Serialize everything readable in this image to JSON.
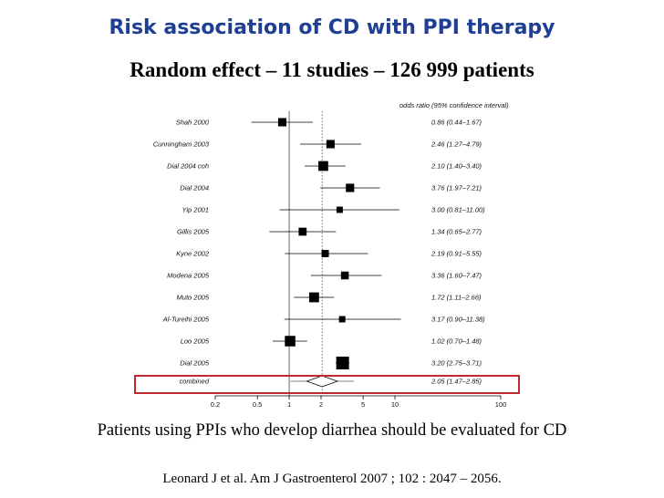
{
  "slide": {
    "title": "Risk association of CD with PPI therapy",
    "subtitle": "Random effect – 11 studies – 126 999 patients",
    "caption": "Patients using PPIs who develop diarrhea should be evaluated for CD",
    "citation": "Leonard J et al. Am J Gastroenterol 2007 ; 102 : 2047 – 2056."
  },
  "colors": {
    "title": "#1f3f94",
    "highlight": "#c0282d"
  },
  "chart_data": {
    "type": "forest",
    "column_header": "odds ratio (95% confidence interval)",
    "x_scale": "log",
    "x_ticks": [
      0.2,
      0.5,
      1,
      2,
      5,
      10,
      100
    ],
    "x_tick_labels": [
      "0.2",
      "0.5",
      "1",
      "2",
      "5",
      "10",
      "100"
    ],
    "xlim": [
      0.2,
      100
    ],
    "reference_line": 1,
    "pooled_line": 2.05,
    "studies": [
      {
        "name": "Shah 2000",
        "or": 0.86,
        "lo": 0.44,
        "hi": 1.67,
        "label": "0.86 (0.44–1.67)"
      },
      {
        "name": "Cunningham 2003",
        "or": 2.46,
        "lo": 1.27,
        "hi": 4.79,
        "label": "2.46 (1.27–4.79)"
      },
      {
        "name": "Dial 2004 coh",
        "or": 2.1,
        "lo": 1.4,
        "hi": 3.4,
        "label": "2.10 (1.40–3.40)"
      },
      {
        "name": "Dial 2004",
        "or": 3.76,
        "lo": 1.97,
        "hi": 7.21,
        "label": "3.76 (1.97–7.21)"
      },
      {
        "name": "Yip 2001",
        "or": 3.0,
        "lo": 0.81,
        "hi": 11.0,
        "label": "3.00 (0.81–11.00)"
      },
      {
        "name": "Gillis 2005",
        "or": 1.34,
        "lo": 0.65,
        "hi": 2.77,
        "label": "1.34 (0.65–2.77)"
      },
      {
        "name": "Kyne 2002",
        "or": 2.19,
        "lo": 0.91,
        "hi": 5.55,
        "label": "2.19 (0.91–5.55)"
      },
      {
        "name": "Modena 2005",
        "or": 3.36,
        "lo": 1.6,
        "hi": 7.47,
        "label": "3.36 (1.60–7.47)"
      },
      {
        "name": "Muto 2005",
        "or": 1.72,
        "lo": 1.11,
        "hi": 2.66,
        "label": "1.72 (1.11–2.66)"
      },
      {
        "name": "Al-Tureihi 2005",
        "or": 3.17,
        "lo": 0.9,
        "hi": 11.38,
        "label": "3.17 (0.90–11.38)"
      },
      {
        "name": "Loo 2005",
        "or": 1.02,
        "lo": 0.7,
        "hi": 1.48,
        "label": "1.02 (0.70–1.48)"
      },
      {
        "name": "Dial 2005",
        "or": 3.2,
        "lo": 2.75,
        "hi": 3.71,
        "label": "3.20 (2.75–3.71)"
      }
    ],
    "combined": {
      "name": "combined",
      "or": 2.05,
      "lo": 1.47,
      "hi": 2.85,
      "label": "2.05 (1.47–2.85)"
    }
  }
}
